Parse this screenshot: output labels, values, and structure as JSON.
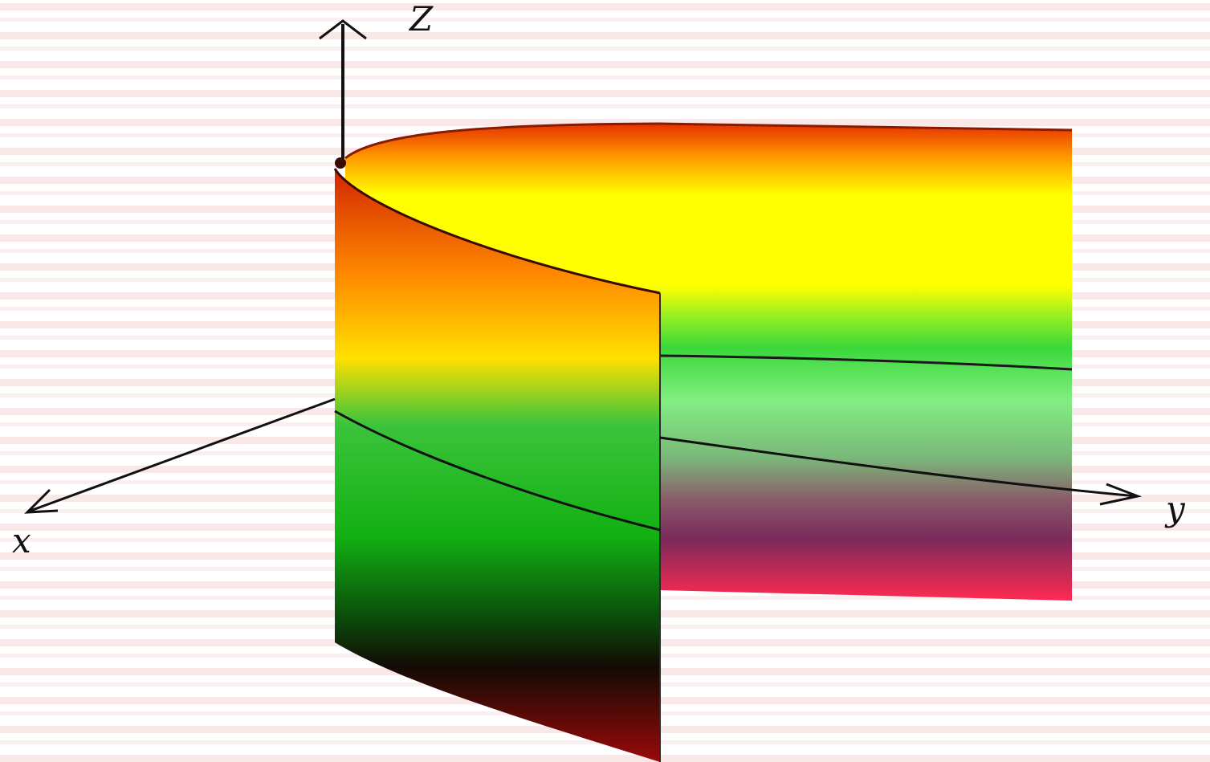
{
  "axes": {
    "z_label": "Z",
    "x_label": "x",
    "y_label": "y"
  },
  "colors": {
    "background_stripe": "#f6e0e0",
    "surface_top_edge": "#e03a00",
    "surface_yellow": "#ffff00",
    "surface_green": "#18c018",
    "surface_dark": "#140a04",
    "surface_dark_red": "#8a0808",
    "inner_light_green": "#7ef07e",
    "inner_purple": "#7a2a5a",
    "inner_pink": "#ff2a52",
    "axis_line": "#111111"
  }
}
